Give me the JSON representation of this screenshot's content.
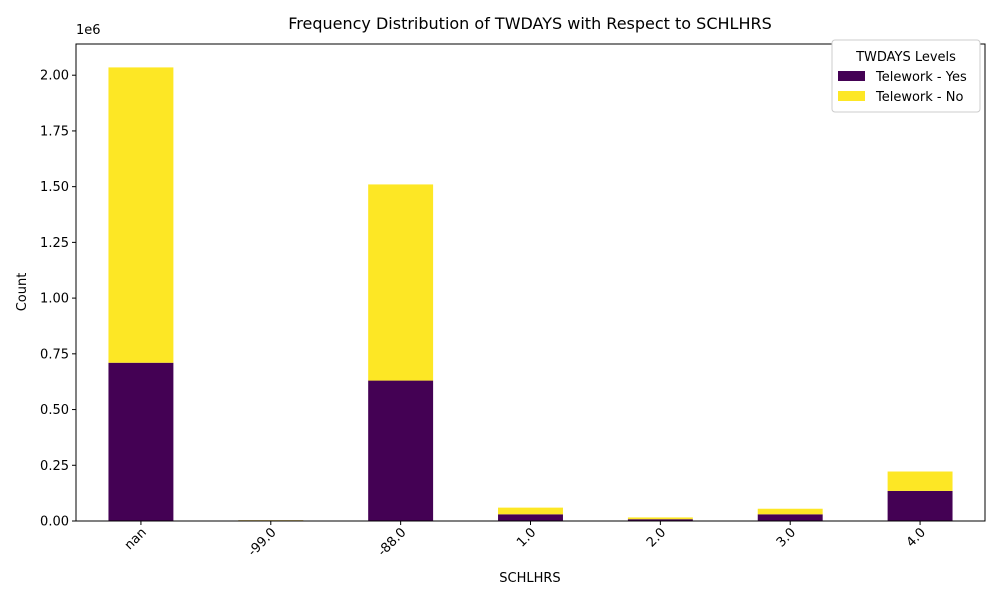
{
  "chart_data": {
    "type": "bar",
    "stacked": true,
    "title": "Frequency Distribution of TWDAYS with Respect to SCHLHRS",
    "xlabel": "SCHLHRS",
    "ylabel": "Count",
    "y_offset_label": "1e6",
    "categories": [
      "nan",
      "-99.0",
      "-88.0",
      "1.0",
      "2.0",
      "3.0",
      "4.0"
    ],
    "series": [
      {
        "name": "Telework - Yes",
        "color": "#440154",
        "values": [
          710000,
          3000,
          630000,
          30000,
          8000,
          30000,
          135000
        ]
      },
      {
        "name": "Telework - No",
        "color": "#fde725",
        "values": [
          1325000,
          1000,
          880000,
          30000,
          8000,
          25000,
          87000
        ]
      }
    ],
    "ylim": [
      0,
      2140000
    ],
    "yticks": [
      0,
      250000,
      500000,
      750000,
      1000000,
      1250000,
      1500000,
      1750000,
      2000000
    ],
    "ytick_labels": [
      "0.00",
      "0.25",
      "0.50",
      "0.75",
      "1.00",
      "1.25",
      "1.50",
      "1.75",
      "2.00"
    ],
    "legend": {
      "title": "TWDAYS Levels",
      "position": "top-right"
    },
    "grid": false
  }
}
